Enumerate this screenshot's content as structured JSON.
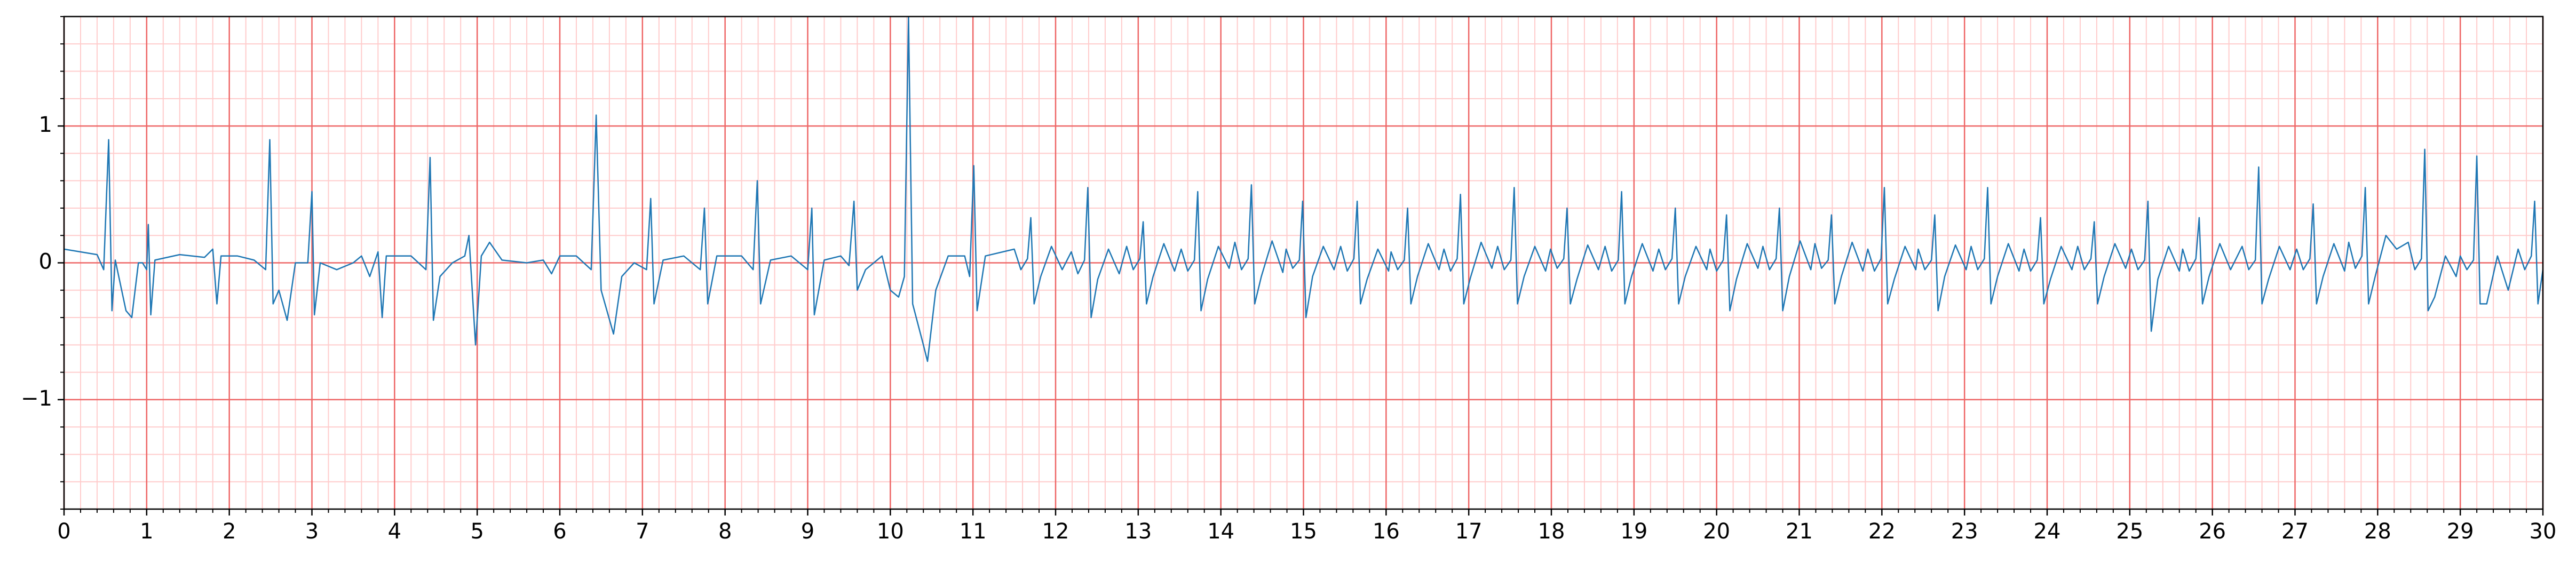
{
  "chart_data": {
    "type": "line",
    "x": [
      0,
      0.2,
      0.4,
      0.48,
      0.54,
      0.58,
      0.62,
      0.75,
      0.82,
      0.9,
      0.95,
      1.0,
      1.02,
      1.05,
      1.1,
      1.4,
      1.7,
      1.8,
      1.85,
      1.9,
      2.1,
      2.3,
      2.44,
      2.49,
      2.53,
      2.6,
      2.7,
      2.8,
      2.95,
      3.0,
      3.03,
      3.1,
      3.3,
      3.5,
      3.6,
      3.7,
      3.8,
      3.85,
      3.9,
      4.0,
      4.2,
      4.38,
      4.43,
      4.47,
      4.55,
      4.7,
      4.85,
      4.9,
      4.98,
      5.05,
      5.15,
      5.3,
      5.6,
      5.8,
      5.9,
      6.0,
      6.2,
      6.38,
      6.44,
      6.5,
      6.65,
      6.75,
      6.9,
      7.05,
      7.1,
      7.14,
      7.25,
      7.5,
      7.7,
      7.75,
      7.79,
      7.9,
      8.2,
      8.34,
      8.39,
      8.43,
      8.55,
      8.8,
      9.0,
      9.05,
      9.08,
      9.2,
      9.4,
      9.5,
      9.56,
      9.6,
      9.7,
      9.9,
      10.0,
      10.1,
      10.17,
      10.22,
      10.27,
      10.4,
      10.45,
      10.55,
      10.7,
      10.9,
      10.96,
      11.01,
      11.05,
      11.15,
      11.5,
      11.58,
      11.66,
      11.7,
      11.74,
      11.82,
      11.95,
      12.08,
      12.19,
      12.27,
      12.35,
      12.39,
      12.43,
      12.51,
      12.64,
      12.77,
      12.86,
      12.94,
      13.02,
      13.06,
      13.1,
      13.18,
      13.31,
      13.44,
      13.52,
      13.6,
      13.68,
      13.72,
      13.76,
      13.84,
      13.97,
      14.1,
      14.17,
      14.25,
      14.33,
      14.37,
      14.41,
      14.49,
      14.62,
      14.75,
      14.79,
      14.87,
      14.95,
      14.99,
      15.03,
      15.11,
      15.24,
      15.37,
      15.45,
      15.53,
      15.61,
      15.65,
      15.69,
      15.77,
      15.9,
      16.03,
      16.06,
      16.14,
      16.22,
      16.26,
      16.3,
      16.38,
      16.51,
      16.64,
      16.7,
      16.78,
      16.86,
      16.9,
      16.94,
      17.02,
      17.15,
      17.28,
      17.35,
      17.43,
      17.51,
      17.55,
      17.59,
      17.67,
      17.8,
      17.93,
      17.99,
      18.07,
      18.15,
      18.19,
      18.23,
      18.31,
      18.44,
      18.57,
      18.65,
      18.73,
      18.81,
      18.85,
      18.89,
      18.97,
      19.1,
      19.23,
      19.3,
      19.38,
      19.46,
      19.5,
      19.54,
      19.62,
      19.75,
      19.88,
      19.92,
      20.0,
      20.08,
      20.12,
      20.16,
      20.24,
      20.37,
      20.5,
      20.56,
      20.64,
      20.72,
      20.76,
      20.8,
      20.88,
      21.01,
      21.14,
      21.19,
      21.27,
      21.35,
      21.39,
      21.43,
      21.51,
      21.64,
      21.77,
      21.83,
      21.91,
      21.99,
      22.03,
      22.07,
      22.15,
      22.28,
      22.41,
      22.44,
      22.52,
      22.6,
      22.64,
      22.68,
      22.76,
      22.89,
      23.02,
      23.08,
      23.16,
      23.24,
      23.28,
      23.32,
      23.4,
      23.53,
      23.66,
      23.72,
      23.8,
      23.88,
      23.92,
      23.96,
      24.04,
      24.17,
      24.3,
      24.37,
      24.45,
      24.53,
      24.57,
      24.61,
      24.69,
      24.82,
      24.95,
      25.02,
      25.1,
      25.18,
      25.22,
      25.26,
      25.34,
      25.47,
      25.6,
      25.64,
      25.72,
      25.8,
      25.84,
      25.88,
      25.96,
      26.09,
      26.22,
      26.36,
      26.44,
      26.52,
      26.56,
      26.6,
      26.68,
      26.81,
      26.94,
      27.02,
      27.1,
      27.18,
      27.22,
      27.26,
      27.34,
      27.47,
      27.6,
      27.65,
      27.73,
      27.81,
      27.85,
      27.89,
      27.97,
      28.1,
      28.23,
      28.37,
      28.45,
      28.53,
      28.57,
      28.61,
      28.69,
      28.82,
      28.95,
      29.0,
      29.08,
      29.16,
      29.2,
      29.24,
      29.32,
      29.45,
      29.58,
      29.7,
      29.78,
      29.86,
      29.9,
      29.94,
      30
    ],
    "series": [
      {
        "color": "#1f77b4",
        "values": [
          0.1,
          0.08,
          0.06,
          -0.05,
          0.9,
          -0.35,
          0.02,
          -0.35,
          -0.4,
          0.0,
          0.0,
          -0.05,
          0.28,
          -0.38,
          0.02,
          0.06,
          0.04,
          0.1,
          -0.3,
          0.05,
          0.05,
          0.02,
          -0.05,
          0.9,
          -0.3,
          -0.2,
          -0.42,
          0.0,
          0.0,
          0.52,
          -0.38,
          0.0,
          -0.05,
          0.0,
          0.05,
          -0.1,
          0.08,
          -0.4,
          0.05,
          0.05,
          0.05,
          -0.05,
          0.77,
          -0.42,
          -0.1,
          0.0,
          0.05,
          0.2,
          -0.6,
          0.05,
          0.15,
          0.02,
          0.0,
          0.02,
          -0.08,
          0.05,
          0.05,
          -0.05,
          1.08,
          -0.2,
          -0.52,
          -0.1,
          0.0,
          -0.05,
          0.47,
          -0.3,
          0.02,
          0.05,
          -0.05,
          0.4,
          -0.3,
          0.05,
          0.05,
          -0.05,
          0.6,
          -0.3,
          0.02,
          0.05,
          -0.05,
          0.4,
          -0.38,
          0.02,
          0.05,
          -0.02,
          0.45,
          -0.2,
          -0.05,
          0.05,
          -0.2,
          -0.25,
          -0.1,
          1.8,
          -0.3,
          -0.6,
          -0.72,
          -0.2,
          0.05,
          0.05,
          -0.1,
          0.71,
          -0.35,
          0.05,
          0.1,
          -0.05,
          0.03,
          0.33,
          -0.3,
          -0.1,
          0.12,
          -0.05,
          0.08,
          -0.08,
          0.02,
          0.55,
          -0.4,
          -0.12,
          0.1,
          -0.08,
          0.12,
          -0.05,
          0.03,
          0.3,
          -0.3,
          -0.1,
          0.14,
          -0.06,
          0.1,
          -0.06,
          0.02,
          0.52,
          -0.35,
          -0.12,
          0.12,
          -0.04,
          0.15,
          -0.05,
          0.03,
          0.57,
          -0.3,
          -0.1,
          0.16,
          -0.07,
          0.1,
          -0.04,
          0.02,
          0.45,
          -0.4,
          -0.1,
          0.12,
          -0.05,
          0.12,
          -0.06,
          0.03,
          0.45,
          -0.3,
          -0.12,
          0.1,
          -0.06,
          0.08,
          -0.05,
          0.02,
          0.4,
          -0.3,
          -0.1,
          0.14,
          -0.05,
          0.1,
          -0.06,
          0.03,
          0.5,
          -0.3,
          -0.11,
          0.15,
          -0.04,
          0.12,
          -0.05,
          0.02,
          0.55,
          -0.3,
          -0.1,
          0.12,
          -0.06,
          0.1,
          -0.04,
          0.03,
          0.4,
          -0.3,
          -0.12,
          0.13,
          -0.05,
          0.12,
          -0.06,
          0.02,
          0.52,
          -0.3,
          -0.1,
          0.14,
          -0.06,
          0.1,
          -0.05,
          0.03,
          0.4,
          -0.3,
          -0.1,
          0.12,
          -0.05,
          0.1,
          -0.06,
          0.02,
          0.35,
          -0.35,
          -0.12,
          0.14,
          -0.04,
          0.12,
          -0.05,
          0.03,
          0.4,
          -0.35,
          -0.1,
          0.16,
          -0.05,
          0.14,
          -0.04,
          0.02,
          0.35,
          -0.3,
          -0.1,
          0.15,
          -0.06,
          0.1,
          -0.06,
          0.03,
          0.55,
          -0.3,
          -0.12,
          0.12,
          -0.05,
          0.1,
          -0.05,
          0.02,
          0.35,
          -0.35,
          -0.1,
          0.13,
          -0.05,
          0.12,
          -0.05,
          0.03,
          0.55,
          -0.3,
          -0.1,
          0.14,
          -0.06,
          0.1,
          -0.06,
          0.02,
          0.33,
          -0.3,
          -0.12,
          0.12,
          -0.05,
          0.12,
          -0.05,
          0.03,
          0.3,
          -0.3,
          -0.1,
          0.14,
          -0.04,
          0.1,
          -0.05,
          0.02,
          0.45,
          -0.5,
          -0.12,
          0.12,
          -0.06,
          0.1,
          -0.06,
          0.03,
          0.33,
          -0.3,
          -0.1,
          0.14,
          -0.05,
          0.12,
          -0.05,
          0.02,
          0.7,
          -0.3,
          -0.12,
          0.12,
          -0.05,
          0.1,
          -0.05,
          0.03,
          0.43,
          -0.3,
          -0.1,
          0.14,
          -0.06,
          0.15,
          -0.04,
          0.05,
          0.55,
          -0.3,
          -0.1,
          0.2,
          0.1,
          0.15,
          -0.05,
          0.03,
          0.83,
          -0.35,
          -0.25,
          0.05,
          -0.1,
          0.05,
          -0.05,
          0.02,
          0.78,
          -0.3,
          -0.3,
          0.05,
          -0.2,
          0.1,
          -0.05,
          0.05,
          0.45,
          -0.3,
          -0.05
        ]
      }
    ],
    "xlim": [
      0,
      30
    ],
    "ylim": [
      -1.8,
      1.8
    ],
    "xticks": [
      0,
      1,
      2,
      3,
      4,
      5,
      6,
      7,
      8,
      9,
      10,
      11,
      12,
      13,
      14,
      15,
      16,
      17,
      18,
      19,
      20,
      21,
      22,
      23,
      24,
      25,
      26,
      27,
      28,
      29,
      30
    ],
    "yticks": [
      {
        "value": -1,
        "label": "−1"
      },
      0,
      1
    ],
    "grid": true,
    "minor_grid": true,
    "grid_color": "#ee6666",
    "minor_grid_color": "#ffcccc"
  }
}
